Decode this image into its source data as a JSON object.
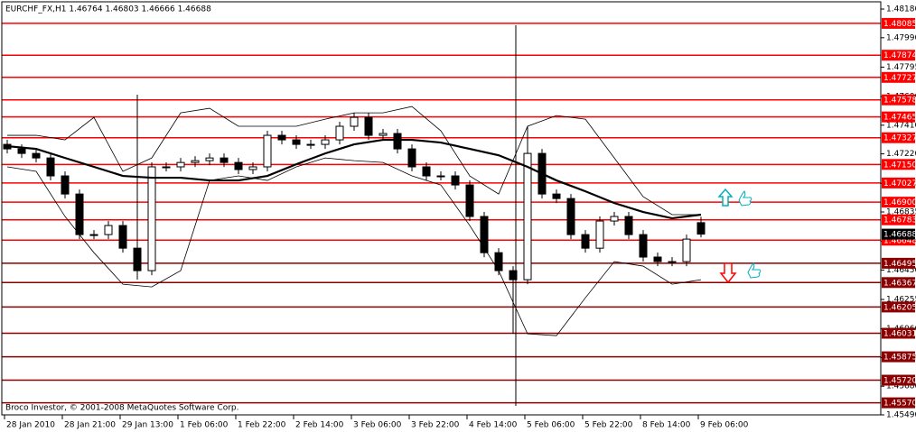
{
  "chart_data": {
    "type": "candlestick",
    "title": "EURCHF_FX,H1  1.46764 1.46803 1.46666 1.46688",
    "footer": "Broco Investor, © 2001-2008 MetaQuotes Software Corp.",
    "categories": [
      "28 Jan 2010",
      null,
      null,
      null,
      "28 Jan 21:00",
      null,
      null,
      null,
      "29 Jan 13:00",
      null,
      null,
      null,
      "1 Feb 06:00",
      null,
      null,
      null,
      "1 Feb 22:00",
      null,
      null,
      null,
      "2 Feb 14:00",
      null,
      null,
      null,
      "3 Feb 06:00",
      null,
      null,
      null,
      "3 Feb 22:00",
      null,
      null,
      null,
      "4 Feb 14:00",
      null,
      null,
      null,
      "5 Feb 06:00",
      null,
      null,
      null,
      "5 Feb 22:00",
      null,
      null,
      null,
      "8 Feb 14:00",
      null,
      null,
      null,
      "9 Feb 06:00"
    ],
    "open": [
      1.47283,
      1.47253,
      1.47223,
      1.47193,
      1.47074,
      1.46954,
      1.46685,
      1.46685,
      1.46745,
      1.46595,
      1.46446,
      1.47134,
      1.47134,
      1.47163,
      1.47175,
      1.47193,
      1.47163,
      1.47116,
      1.47134,
      1.47343,
      1.47313,
      1.47283,
      1.47283,
      1.47313,
      1.47403,
      1.47462,
      1.47343,
      1.47355,
      1.47253,
      1.47134,
      1.47074,
      1.47074,
      1.47014,
      1.46805,
      1.46565,
      1.46446,
      1.46386,
      1.47223,
      1.46954,
      1.46924,
      1.46685,
      1.46595,
      1.46775,
      1.46805,
      1.46685,
      1.46536,
      1.46506,
      1.46506,
      1.46764
    ],
    "high": [
      1.47313,
      1.47283,
      1.47253,
      1.47223,
      1.47104,
      1.46984,
      1.46715,
      1.46775,
      1.46775,
      1.47612,
      1.47164,
      1.47164,
      1.47193,
      1.47205,
      1.47223,
      1.47223,
      1.47193,
      1.47164,
      1.47373,
      1.47373,
      1.47343,
      1.47313,
      1.47343,
      1.47433,
      1.47492,
      1.47492,
      1.47385,
      1.47385,
      1.47283,
      1.47164,
      1.47104,
      1.47104,
      1.47044,
      1.46835,
      1.46595,
      1.46476,
      1.47403,
      1.47253,
      1.46984,
      1.46954,
      1.46715,
      1.46805,
      1.46835,
      1.46835,
      1.46715,
      1.46566,
      1.46536,
      1.46685,
      1.46803
    ],
    "low": [
      1.47223,
      1.47193,
      1.47163,
      1.47044,
      1.46924,
      1.46655,
      1.46655,
      1.46655,
      1.46565,
      1.46386,
      1.46416,
      1.47104,
      1.47104,
      1.47133,
      1.47145,
      1.47133,
      1.47086,
      1.47086,
      1.47104,
      1.47283,
      1.47253,
      1.47253,
      1.47253,
      1.47283,
      1.47373,
      1.47313,
      1.47313,
      1.47223,
      1.47104,
      1.47044,
      1.47044,
      1.46984,
      1.46775,
      1.46535,
      1.46416,
      1.46027,
      1.46356,
      1.46924,
      1.46894,
      1.46655,
      1.46565,
      1.46565,
      1.46745,
      1.46655,
      1.46506,
      1.46476,
      1.46476,
      1.46476,
      1.46666
    ],
    "close": [
      1.47253,
      1.47223,
      1.47193,
      1.47074,
      1.46954,
      1.46685,
      1.46685,
      1.46745,
      1.46595,
      1.46446,
      1.47134,
      1.47134,
      1.47163,
      1.47175,
      1.47193,
      1.47163,
      1.47116,
      1.47134,
      1.47343,
      1.47313,
      1.47283,
      1.47283,
      1.47313,
      1.47403,
      1.47462,
      1.47343,
      1.47355,
      1.47253,
      1.47134,
      1.47074,
      1.47074,
      1.47014,
      1.46805,
      1.46565,
      1.46446,
      1.46386,
      1.47223,
      1.46954,
      1.46924,
      1.46685,
      1.46595,
      1.46775,
      1.46805,
      1.46685,
      1.46536,
      1.46506,
      1.46506,
      1.46655,
      1.46688
    ],
    "overlay_x": [
      0,
      2,
      4,
      6,
      8,
      10,
      12,
      14,
      16,
      18,
      20,
      22,
      24,
      26,
      28,
      30,
      32,
      34,
      36,
      38,
      40,
      42,
      44,
      46,
      48
    ],
    "moving_average": {
      "color": "#000000",
      "values": [
        1.47271,
        1.47253,
        1.47193,
        1.47134,
        1.47074,
        1.47062,
        1.47062,
        1.47044,
        1.47044,
        1.47074,
        1.47151,
        1.47223,
        1.47283,
        1.47313,
        1.47313,
        1.47295,
        1.47253,
        1.47211,
        1.47134,
        1.47044,
        1.46972,
        1.46894,
        1.46835,
        1.46793,
        1.46817
      ]
    },
    "bands": [
      {
        "color": "#000000",
        "values": [
          1.47343,
          1.47343,
          1.47313,
          1.47462,
          1.47104,
          1.47193,
          1.47492,
          1.47522,
          1.47403,
          1.47403,
          1.47403,
          1.4745,
          1.47492,
          1.47492,
          1.47534,
          1.47373,
          1.47074,
          1.46954,
          1.47403,
          1.47474,
          1.4745,
          1.47193,
          1.46936,
          1.46817,
          1.46817
        ]
      },
      {
        "color": "#000000",
        "values": [
          1.47134,
          1.47104,
          1.46805,
          1.46565,
          1.46356,
          1.46338,
          1.46446,
          1.47044,
          1.47074,
          1.47044,
          1.47134,
          1.47193,
          1.47175,
          1.47163,
          1.47074,
          1.47014,
          1.46745,
          1.46446,
          1.46027,
          1.46015,
          1.46266,
          1.46506,
          1.46476,
          1.46356,
          1.46386
        ]
      }
    ],
    "ylim": [
      1.4549,
      1.48228
    ],
    "yticks": [
      {
        "value": 1.4818,
        "label": "1.48180"
      },
      {
        "value": 1.4799,
        "label": "1.47990"
      },
      1.47795,
      {
        "value": 1.476,
        "label": "1.47600"
      },
      {
        "value": 1.4741,
        "label": "1.47410"
      },
      {
        "value": 1.4722,
        "label": "1.47220"
      },
      1.47025,
      1.46835,
      {
        "value": 1.4664,
        "label": "1.46640"
      },
      {
        "value": 1.4645,
        "label": "1.46450"
      },
      1.46255,
      {
        "value": 1.4606,
        "label": "1.46060"
      },
      {
        "value": 1.4587,
        "label": "1.45870"
      },
      {
        "value": 1.4568,
        "label": "1.45680"
      },
      {
        "value": 1.4549,
        "label": "1.45490"
      }
    ],
    "levels": [
      {
        "value": 1.48085,
        "color": "#ff0000"
      },
      {
        "value": 1.47874,
        "color": "#ff0000"
      },
      {
        "value": 1.47727,
        "color": "#ff0000"
      },
      {
        "value": 1.47578,
        "color": "#ff0000"
      },
      {
        "value": 1.47465,
        "color": "#ff0000"
      },
      {
        "value": 1.47327,
        "color": "#ff0000"
      },
      {
        "value": 1.4715,
        "label": "1.47150",
        "color": "#ff0000"
      },
      {
        "value": 1.47027,
        "color": "#ff0000"
      },
      {
        "value": 1.469,
        "label": "1.46900",
        "color": "#ff0000"
      },
      {
        "value": 1.46783,
        "color": "#ff0000"
      },
      {
        "value": 1.46648,
        "color": "#ff0000"
      },
      {
        "value": 1.46495,
        "color": "#8b0000"
      },
      {
        "value": 1.46367,
        "color": "#8b0000"
      },
      {
        "value": 1.46205,
        "color": "#8b0000"
      },
      {
        "value": 1.46031,
        "color": "#8b0000"
      },
      {
        "value": 1.45875,
        "color": "#8b0000"
      },
      {
        "value": 1.4572,
        "label": "1.45720",
        "color": "#8b0000"
      },
      {
        "value": 1.4557,
        "label": "1.45570",
        "color": "#8b0000"
      }
    ],
    "last_price": {
      "value": 1.46688,
      "color": "#000000"
    }
  }
}
